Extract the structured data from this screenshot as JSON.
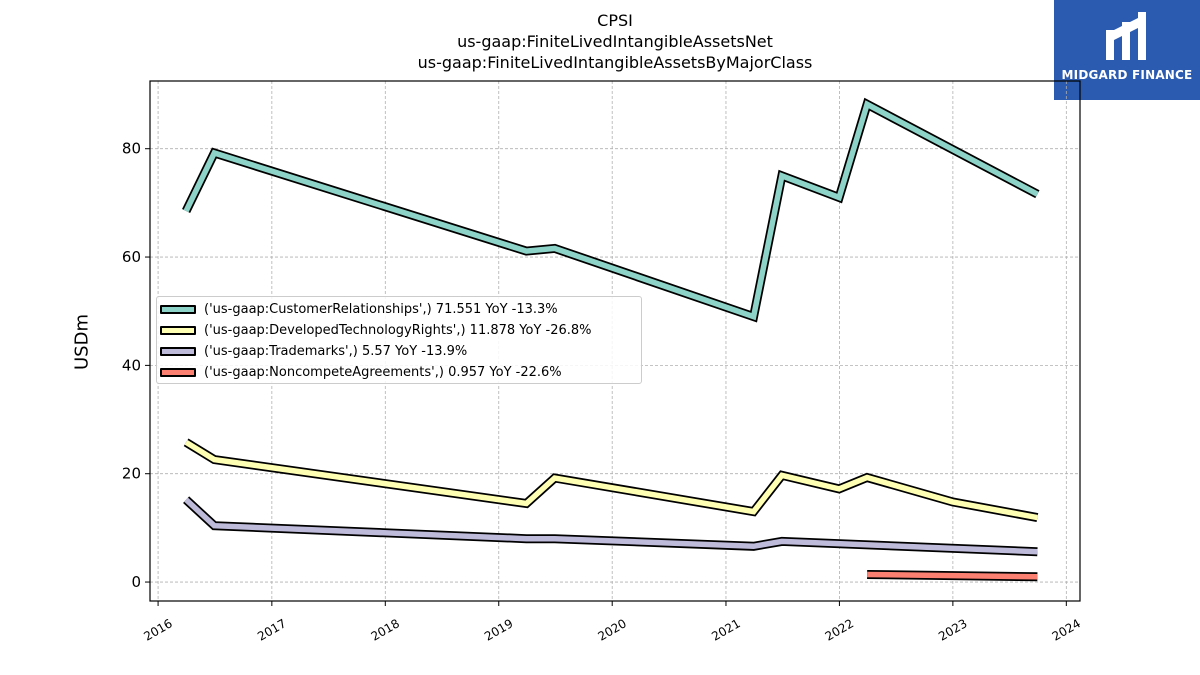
{
  "header": {
    "title_lines": [
      "CPSI",
      "us-gaap:FiniteLivedIntangibleAssetsNet",
      "us-gaap:FiniteLivedIntangibleAssetsByMajorClass"
    ]
  },
  "logo": {
    "text": "MIDGARD FINANCE",
    "color": "#2a5bb0"
  },
  "chart_data": {
    "type": "line",
    "title": "CPSI\nus-gaap:FiniteLivedIntangibleAssetsNet\nus-gaap:FiniteLivedIntangibleAssetsByMajorClass",
    "xlabel": "",
    "ylabel": "USDm",
    "xlim": [
      "2015-12-06",
      "2024-02-14"
    ],
    "ylim": [
      -3.5,
      92.5
    ],
    "x_ticks": [
      "2016",
      "2017",
      "2018",
      "2019",
      "2020",
      "2021",
      "2022",
      "2023",
      "2024"
    ],
    "y_ticks": [
      0,
      20,
      40,
      60,
      80
    ],
    "grid": true,
    "legend_position": "center-left",
    "series": [
      {
        "name": "('us-gaap:CustomerRelationships',) 71.551 YoY -13.3%",
        "color": "#8dd3c7",
        "points": [
          [
            "2016-03-31",
            68.5
          ],
          [
            "2016-06-30",
            79.2
          ],
          [
            "2019-03-31",
            61.1
          ],
          [
            "2019-06-30",
            61.6
          ],
          [
            "2021-03-31",
            49.0
          ],
          [
            "2021-06-30",
            75.0
          ],
          [
            "2021-12-31",
            71.0
          ],
          [
            "2022-03-31",
            88.2
          ],
          [
            "2023-09-30",
            71.6
          ]
        ]
      },
      {
        "name": "('us-gaap:DevelopedTechnologyRights',) 11.878 YoY -26.8%",
        "color": "#ffffb3",
        "points": [
          [
            "2016-03-31",
            25.8
          ],
          [
            "2016-06-30",
            22.6
          ],
          [
            "2019-03-31",
            14.5
          ],
          [
            "2019-06-30",
            19.2
          ],
          [
            "2021-03-31",
            13.0
          ],
          [
            "2021-06-30",
            19.7
          ],
          [
            "2021-12-31",
            17.2
          ],
          [
            "2022-03-31",
            19.3
          ],
          [
            "2022-12-31",
            14.8
          ],
          [
            "2023-09-30",
            11.9
          ]
        ]
      },
      {
        "name": "('us-gaap:Trademarks',) 5.57 YoY -13.9%",
        "color": "#bebada",
        "points": [
          [
            "2016-03-31",
            15.2
          ],
          [
            "2016-06-30",
            10.4
          ],
          [
            "2019-03-31",
            8.0
          ],
          [
            "2019-06-30",
            8.0
          ],
          [
            "2021-03-31",
            6.6
          ],
          [
            "2021-06-30",
            7.5
          ],
          [
            "2023-09-30",
            5.6
          ]
        ]
      },
      {
        "name": "('us-gaap:NoncompeteAgreements',) 0.957 YoY -22.6%",
        "color": "#fb8072",
        "points": [
          [
            "2022-03-31",
            1.4
          ],
          [
            "2023-09-30",
            0.96
          ]
        ]
      }
    ]
  }
}
